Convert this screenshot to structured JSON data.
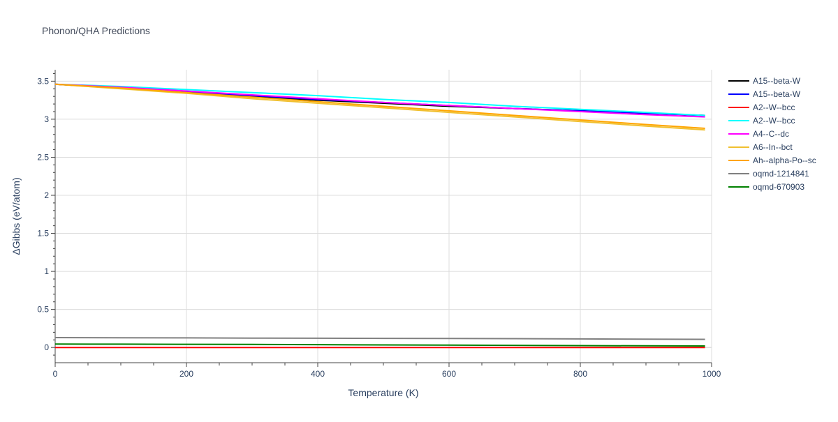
{
  "chart_data": {
    "type": "line",
    "title": "Phonon/QHA Predictions",
    "xlabel": "Temperature (K)",
    "ylabel": "ΔGibbs (eV/atom)",
    "xlim": [
      0,
      1000
    ],
    "ylim": [
      -0.2,
      3.65
    ],
    "x_ticks": [
      0,
      200,
      400,
      600,
      800,
      1000
    ],
    "x_tick_labels": [
      "0",
      "200",
      "400",
      "600",
      "800",
      "1000"
    ],
    "y_ticks": [
      0,
      0.5,
      1,
      1.5,
      2,
      2.5,
      3,
      3.5
    ],
    "y_tick_labels": [
      "0",
      "0.5",
      "1",
      "1.5",
      "2",
      "2.5",
      "3",
      "3.5"
    ],
    "grid": true,
    "legend_position": "right",
    "x": [
      0,
      100,
      200,
      300,
      400,
      500,
      600,
      700,
      800,
      900,
      990
    ],
    "series": [
      {
        "name": "A15--beta-W",
        "color": "#000000",
        "values": [
          3.46,
          3.41,
          3.36,
          3.3,
          3.25,
          3.21,
          3.17,
          3.14,
          3.11,
          3.08,
          3.05
        ]
      },
      {
        "name": "A15--beta-W",
        "color": "#0000ff",
        "values": [
          3.46,
          3.41,
          3.36,
          3.31,
          3.26,
          3.22,
          3.18,
          3.14,
          3.11,
          3.08,
          3.05
        ]
      },
      {
        "name": "A2--W--bcc",
        "color": "#ff0000",
        "values": [
          0.0,
          0.0,
          0.0,
          0.0,
          0.0,
          0.0,
          0.0,
          0.0,
          0.0,
          0.0,
          0.0
        ]
      },
      {
        "name": "A2--W--bcc",
        "color": "#00ffff",
        "values": [
          3.46,
          3.43,
          3.39,
          3.35,
          3.31,
          3.26,
          3.22,
          3.17,
          3.13,
          3.09,
          3.05
        ]
      },
      {
        "name": "A4--C--dc",
        "color": "#ff00ff",
        "values": [
          3.46,
          3.42,
          3.37,
          3.32,
          3.27,
          3.22,
          3.18,
          3.14,
          3.1,
          3.06,
          3.03
        ]
      },
      {
        "name": "A6--In--bct",
        "color": "#f0c030",
        "values": [
          3.46,
          3.4,
          3.34,
          3.27,
          3.21,
          3.15,
          3.09,
          3.03,
          2.97,
          2.91,
          2.86
        ]
      },
      {
        "name": "Ah--alpha-Po--sc",
        "color": "#ffa500",
        "values": [
          3.46,
          3.41,
          3.35,
          3.29,
          3.23,
          3.17,
          3.11,
          3.05,
          2.99,
          2.93,
          2.88
        ]
      },
      {
        "name": "oqmd-1214841",
        "color": "#808080",
        "values": [
          0.13,
          0.128,
          0.126,
          0.124,
          0.122,
          0.12,
          0.118,
          0.116,
          0.113,
          0.11,
          0.107
        ]
      },
      {
        "name": "oqmd-670903",
        "color": "#008000",
        "values": [
          0.045,
          0.044,
          0.042,
          0.04,
          0.037,
          0.034,
          0.031,
          0.028,
          0.025,
          0.022,
          0.02
        ]
      }
    ]
  }
}
